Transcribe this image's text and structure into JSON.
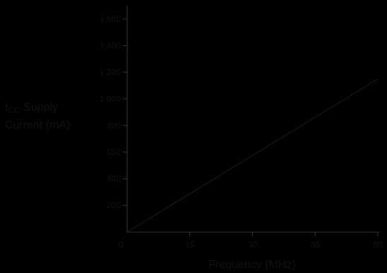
{
  "chart_data": {
    "type": "line",
    "title": "",
    "ylabel_symbol": "I",
    "ylabel_subscript": "CC",
    "ylabel_line1": " Supply",
    "ylabel_line2": "Current (mA)",
    "xlabel": "Frequency (MHz)",
    "xlim": [
      0,
      60
    ],
    "ylim": [
      0,
      1700
    ],
    "x_ticks": [
      0,
      15,
      30,
      45,
      60
    ],
    "x_tick_labels": [
      "0",
      "15",
      "30",
      "45",
      "60"
    ],
    "y_ticks": [
      200,
      400,
      600,
      800,
      1000,
      1200,
      1400,
      1600
    ],
    "y_tick_labels": [
      "200",
      "400",
      "600",
      "800",
      "1,000",
      "1,200",
      "1,400",
      "1,600"
    ],
    "grid": false,
    "series": [
      {
        "x": [
          0,
          60
        ],
        "values": [
          0,
          1150
        ]
      }
    ],
    "colors": {
      "background": "#000000",
      "axis": "#333333",
      "text": "#111111",
      "line": "#1e1e1e"
    }
  }
}
